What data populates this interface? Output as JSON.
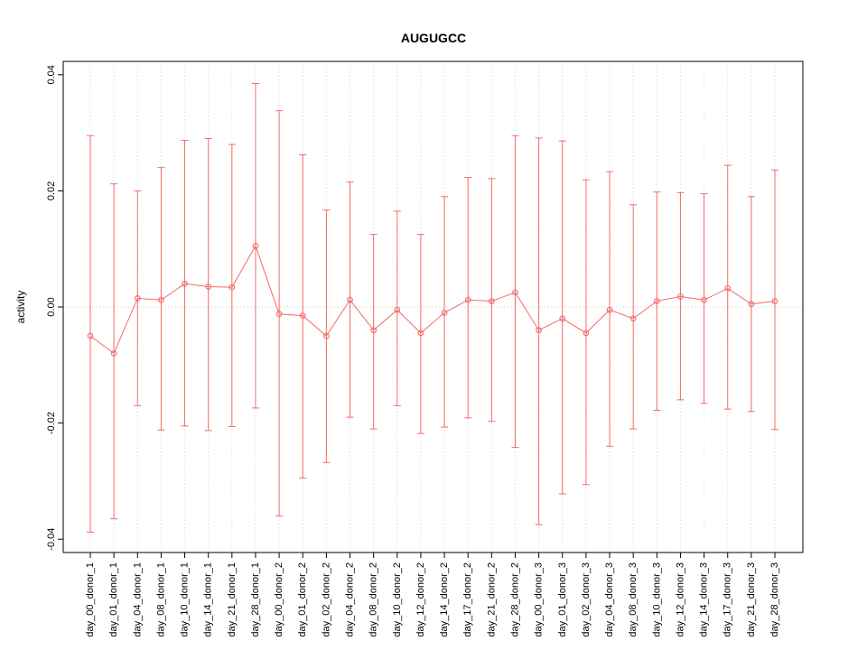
{
  "window": {
    "background": "#ffffff"
  },
  "chart_data": {
    "type": "line",
    "title": "AUGUGCC",
    "xlabel": "",
    "ylabel": "activity",
    "ylim": [
      -0.04,
      0.04
    ],
    "yticks": [
      -0.04,
      -0.02,
      0.0,
      0.02,
      0.04
    ],
    "grid": "vertical dotted gridline per category, dotted horizontal line at y=0",
    "legend": "none",
    "series_color": "#f46a6a",
    "point_style": "open-circle",
    "error_bars": true,
    "categories": [
      "day_00_donor_1",
      "day_01_donor_1",
      "day_04_donor_1",
      "day_08_donor_1",
      "day_10_donor_1",
      "day_14_donor_1",
      "day_21_donor_1",
      "day_28_donor_1",
      "day_00_donor_2",
      "day_01_donor_2",
      "day_02_donor_2",
      "day_04_donor_2",
      "day_08_donor_2",
      "day_10_donor_2",
      "day_12_donor_2",
      "day_14_donor_2",
      "day_17_donor_2",
      "day_21_donor_2",
      "day_28_donor_2",
      "day_00_donor_3",
      "day_01_donor_3",
      "day_02_donor_3",
      "day_04_donor_3",
      "day_08_donor_3",
      "day_10_donor_3",
      "day_12_donor_3",
      "day_14_donor_3",
      "day_17_donor_3",
      "day_21_donor_3",
      "day_28_donor_3"
    ],
    "series": [
      {
        "name": "activity",
        "values": [
          -0.005,
          -0.008,
          0.0015,
          0.0012,
          0.004,
          0.0035,
          0.0034,
          0.0105,
          -0.0012,
          -0.0015,
          -0.005,
          0.0012,
          -0.004,
          -0.0005,
          -0.0045,
          -0.001,
          0.0012,
          0.001,
          0.0025,
          -0.004,
          -0.002,
          -0.0045,
          -0.0005,
          -0.002,
          0.001,
          0.0018,
          0.0012,
          0.0032,
          0.0005,
          0.001
        ],
        "upper": [
          0.0295,
          0.0212,
          0.02,
          0.024,
          0.0287,
          0.029,
          0.028,
          0.0385,
          0.0338,
          0.0262,
          0.0167,
          0.0215,
          0.0125,
          0.0165,
          0.0125,
          0.019,
          0.0223,
          0.0221,
          0.0295,
          0.0291,
          0.0286,
          0.0219,
          0.0233,
          0.0176,
          0.0198,
          0.0197,
          0.0195,
          0.0244,
          0.019,
          0.0236
        ],
        "lower": [
          -0.0388,
          -0.0365,
          -0.017,
          -0.0212,
          -0.0205,
          -0.0213,
          -0.0206,
          -0.0174,
          -0.036,
          -0.0295,
          -0.0268,
          -0.019,
          -0.021,
          -0.017,
          -0.0218,
          -0.0207,
          -0.0191,
          -0.0197,
          -0.0242,
          -0.0375,
          -0.0322,
          -0.0306,
          -0.024,
          -0.021,
          -0.0178,
          -0.016,
          -0.0166,
          -0.0176,
          -0.018,
          -0.0211
        ]
      }
    ]
  }
}
